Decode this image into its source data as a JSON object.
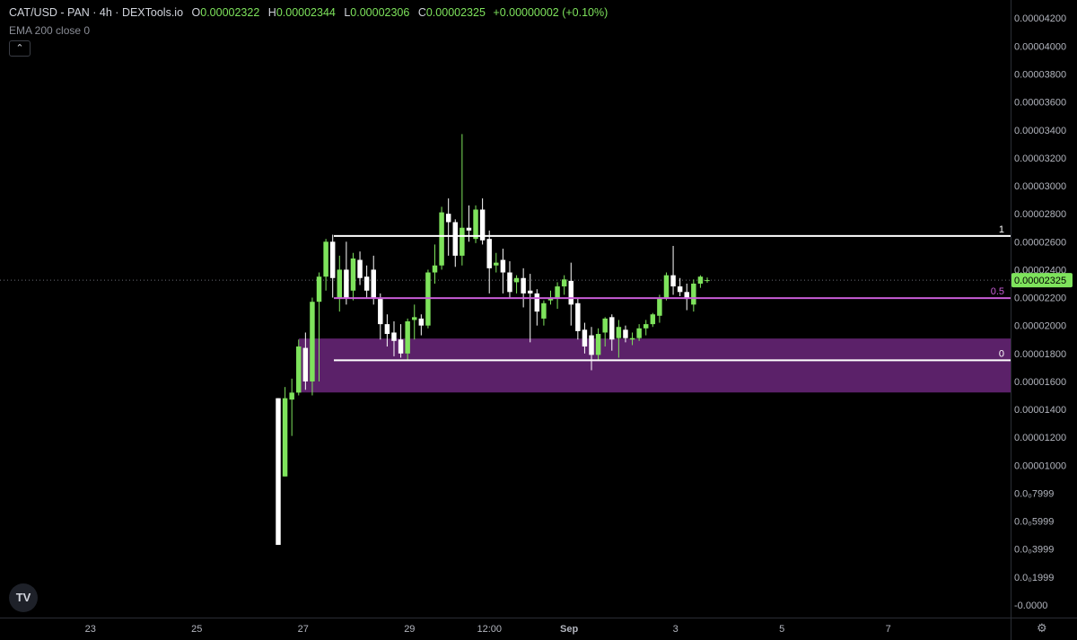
{
  "header": {
    "symbol": "CAT/USD - PAN · 4h · DEXTools.io",
    "ohlc": [
      {
        "key": "O",
        "value": "0.00002322"
      },
      {
        "key": "H",
        "value": "0.00002344"
      },
      {
        "key": "L",
        "value": "0.00002306"
      },
      {
        "key": "C",
        "value": "0.00002325"
      }
    ],
    "change": "+0.00000002 (+0.10%)"
  },
  "indicator": "EMA 200 close 0",
  "collapse_label": "⌃",
  "logo_text": "TV",
  "settings_icon": "⚙",
  "colors": {
    "up": "#7ee35c",
    "down": "#ffffff",
    "zone": "#5b2169",
    "mid_line": "#c85dd6",
    "fib_line": "#ffffff",
    "price_label_bg": "#7ee35c"
  },
  "chart_data": {
    "type": "candlestick",
    "y_tick_labels": [
      "0.00004200",
      "0.00004000",
      "0.00003800",
      "0.00003600",
      "0.00003400",
      "0.00003200",
      "0.00003000",
      "0.00002800",
      "0.00002600",
      "0.00002400",
      "0.00002200",
      "0.00002000",
      "0.00001800",
      "0.00001600",
      "0.00001400",
      "0.00001200",
      "0.00001000",
      "0.0₀7999",
      "0.0₀5999",
      "0.0₀3999",
      "0.0₀1999",
      "-0.0000"
    ],
    "y_tick_values": [
      42,
      40,
      38,
      36,
      34,
      32,
      30,
      28,
      26,
      24,
      22,
      20,
      18,
      16,
      14,
      12,
      10,
      8,
      6,
      4,
      2,
      0
    ],
    "y_unit_note": "values in units of 1e-6 USD",
    "ylim": [
      -0.9,
      43.3
    ],
    "x_tick_labels": [
      "23",
      "25",
      "27",
      "29",
      "12:00",
      "Sep",
      "3",
      "5",
      "7"
    ],
    "x_tick_days": [
      23,
      25,
      27,
      29,
      30.5,
      32,
      34,
      36,
      38
    ],
    "xlim": [
      21.3,
      40.3
    ],
    "current_price_label": "0.00002325",
    "current_price": 23.25,
    "candles": [
      {
        "o": 14.8,
        "h": 14.8,
        "l": 4.3,
        "c": 4.3
      },
      {
        "o": 9.2,
        "h": 15.6,
        "l": 9.2,
        "c": 14.8
      },
      {
        "o": 14.7,
        "h": 16.2,
        "l": 12.1,
        "c": 15.2
      },
      {
        "o": 15.2,
        "h": 19.0,
        "l": 15.0,
        "c": 18.5
      },
      {
        "o": 18.4,
        "h": 19.5,
        "l": 15.4,
        "c": 16.0
      },
      {
        "o": 16.0,
        "h": 22.0,
        "l": 15.0,
        "c": 21.7
      },
      {
        "o": 21.7,
        "h": 23.8,
        "l": 16.0,
        "c": 23.5
      },
      {
        "o": 23.5,
        "h": 26.2,
        "l": 22.5,
        "c": 26.0
      },
      {
        "o": 26.0,
        "h": 26.5,
        "l": 22.0,
        "c": 23.4
      },
      {
        "o": 22.0,
        "h": 25.0,
        "l": 21.0,
        "c": 24.0
      },
      {
        "o": 24.0,
        "h": 26.0,
        "l": 21.5,
        "c": 22.0
      },
      {
        "o": 22.5,
        "h": 25.2,
        "l": 21.8,
        "c": 24.8
      },
      {
        "o": 24.7,
        "h": 25.3,
        "l": 22.9,
        "c": 23.4
      },
      {
        "o": 23.5,
        "h": 24.3,
        "l": 22.0,
        "c": 22.5
      },
      {
        "o": 24.0,
        "h": 25.0,
        "l": 21.5,
        "c": 22.0
      },
      {
        "o": 21.9,
        "h": 22.3,
        "l": 19.0,
        "c": 20.1
      },
      {
        "o": 20.1,
        "h": 20.8,
        "l": 18.5,
        "c": 19.4
      },
      {
        "o": 19.5,
        "h": 20.3,
        "l": 17.8,
        "c": 18.9
      },
      {
        "o": 19.0,
        "h": 20.1,
        "l": 17.7,
        "c": 18.0
      },
      {
        "o": 18.0,
        "h": 20.5,
        "l": 17.5,
        "c": 20.3
      },
      {
        "o": 20.4,
        "h": 21.5,
        "l": 19.0,
        "c": 20.6
      },
      {
        "o": 20.5,
        "h": 20.8,
        "l": 19.3,
        "c": 20.0
      },
      {
        "o": 20.0,
        "h": 24.0,
        "l": 19.8,
        "c": 23.8
      },
      {
        "o": 23.8,
        "h": 25.8,
        "l": 23.0,
        "c": 24.3
      },
      {
        "o": 24.3,
        "h": 28.5,
        "l": 24.0,
        "c": 28.1
      },
      {
        "o": 28.0,
        "h": 29.1,
        "l": 25.0,
        "c": 27.4
      },
      {
        "o": 27.4,
        "h": 27.6,
        "l": 24.2,
        "c": 25.0
      },
      {
        "o": 25.0,
        "h": 33.7,
        "l": 24.3,
        "c": 27.0
      },
      {
        "o": 27.0,
        "h": 28.6,
        "l": 26.0,
        "c": 26.8
      },
      {
        "o": 26.2,
        "h": 28.6,
        "l": 25.9,
        "c": 28.3
      },
      {
        "o": 28.3,
        "h": 29.1,
        "l": 25.8,
        "c": 26.1
      },
      {
        "o": 26.2,
        "h": 26.8,
        "l": 22.3,
        "c": 24.1
      },
      {
        "o": 24.3,
        "h": 25.2,
        "l": 23.8,
        "c": 24.5
      },
      {
        "o": 24.7,
        "h": 25.5,
        "l": 22.3,
        "c": 23.8
      },
      {
        "o": 23.8,
        "h": 24.6,
        "l": 22.0,
        "c": 22.4
      },
      {
        "o": 23.1,
        "h": 23.6,
        "l": 22.3,
        "c": 23.4
      },
      {
        "o": 23.4,
        "h": 24.1,
        "l": 21.3,
        "c": 22.3
      },
      {
        "o": 22.5,
        "h": 23.7,
        "l": 18.8,
        "c": 22.3
      },
      {
        "o": 22.3,
        "h": 22.6,
        "l": 20.0,
        "c": 21.0
      },
      {
        "o": 20.5,
        "h": 21.8,
        "l": 20.0,
        "c": 21.6
      },
      {
        "o": 21.8,
        "h": 22.5,
        "l": 21.5,
        "c": 22.0
      },
      {
        "o": 22.0,
        "h": 23.1,
        "l": 21.2,
        "c": 22.8
      },
      {
        "o": 22.8,
        "h": 23.6,
        "l": 22.2,
        "c": 23.3
      },
      {
        "o": 23.2,
        "h": 24.5,
        "l": 20.0,
        "c": 21.5
      },
      {
        "o": 21.6,
        "h": 22.0,
        "l": 19.0,
        "c": 19.6
      },
      {
        "o": 19.7,
        "h": 20.2,
        "l": 18.0,
        "c": 18.5
      },
      {
        "o": 19.3,
        "h": 19.9,
        "l": 16.8,
        "c": 17.9
      },
      {
        "o": 17.9,
        "h": 19.8,
        "l": 17.5,
        "c": 19.4
      },
      {
        "o": 19.5,
        "h": 20.6,
        "l": 18.5,
        "c": 20.5
      },
      {
        "o": 20.6,
        "h": 20.8,
        "l": 18.2,
        "c": 19.0
      },
      {
        "o": 19.1,
        "h": 20.4,
        "l": 17.7,
        "c": 19.9
      },
      {
        "o": 19.7,
        "h": 20.0,
        "l": 18.8,
        "c": 19.1
      },
      {
        "o": 19.0,
        "h": 19.5,
        "l": 18.6,
        "c": 19.1
      },
      {
        "o": 19.1,
        "h": 20.1,
        "l": 18.9,
        "c": 19.8
      },
      {
        "o": 19.8,
        "h": 20.4,
        "l": 19.3,
        "c": 20.1
      },
      {
        "o": 20.1,
        "h": 20.9,
        "l": 19.9,
        "c": 20.8
      },
      {
        "o": 20.7,
        "h": 22.2,
        "l": 20.2,
        "c": 22.0
      },
      {
        "o": 22.0,
        "h": 23.8,
        "l": 21.8,
        "c": 23.6
      },
      {
        "o": 23.6,
        "h": 25.7,
        "l": 22.2,
        "c": 22.8
      },
      {
        "o": 22.8,
        "h": 23.4,
        "l": 22.1,
        "c": 22.4
      },
      {
        "o": 22.4,
        "h": 23.0,
        "l": 21.1,
        "c": 21.9
      },
      {
        "o": 21.5,
        "h": 23.3,
        "l": 21.0,
        "c": 23.0
      },
      {
        "o": 23.0,
        "h": 23.6,
        "l": 22.7,
        "c": 23.5
      },
      {
        "o": 23.22,
        "h": 23.44,
        "l": 23.06,
        "c": 23.25
      }
    ],
    "fib": {
      "levels": [
        {
          "label": "1",
          "value": 26.41
        },
        {
          "label": "0.5",
          "value": 21.96
        },
        {
          "label": "0",
          "value": 17.51
        }
      ]
    },
    "zone": {
      "top": 19.07,
      "bottom": 15.21
    }
  }
}
